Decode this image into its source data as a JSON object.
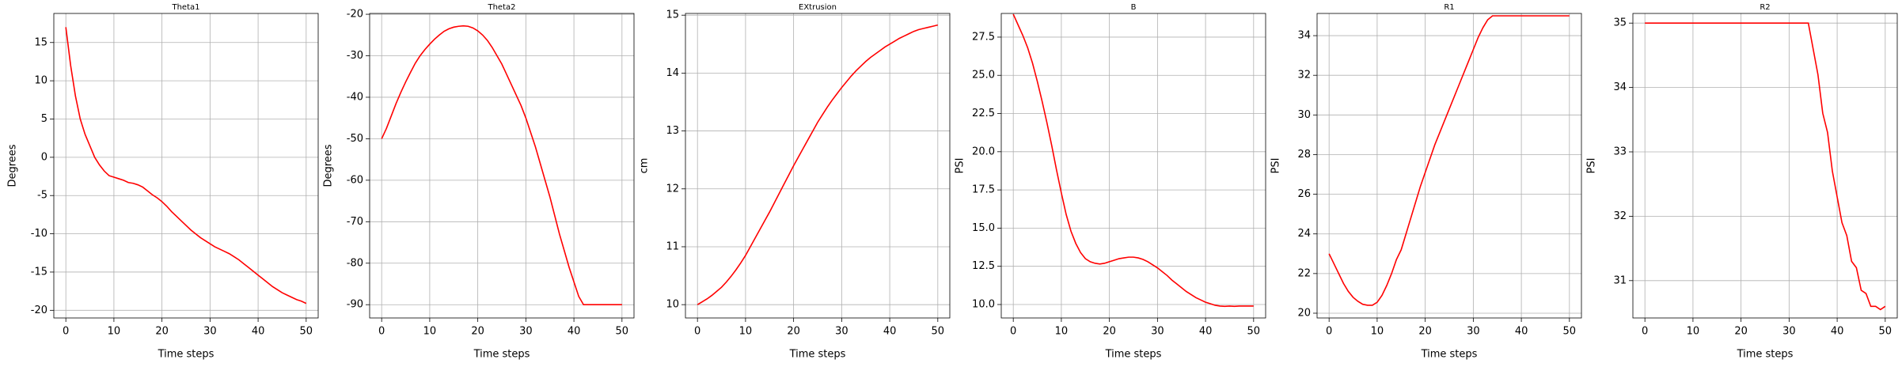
{
  "chart_data": [
    {
      "type": "line",
      "title": "Theta1",
      "xlabel": "Time steps",
      "ylabel": "Degrees",
      "color": "#ff0000",
      "grid": true,
      "x": [
        0,
        1,
        2,
        3,
        4,
        5,
        6,
        7,
        8,
        9,
        10,
        11,
        12,
        13,
        14,
        15,
        16,
        17,
        18,
        19,
        20,
        21,
        22,
        23,
        24,
        25,
        26,
        27,
        28,
        29,
        30,
        31,
        32,
        33,
        34,
        35,
        36,
        37,
        38,
        39,
        40,
        41,
        42,
        43,
        44,
        45,
        46,
        47,
        48,
        49,
        50
      ],
      "values": [
        17,
        12,
        8,
        5,
        3,
        1.5,
        0,
        -1,
        -1.8,
        -2.4,
        -2.6,
        -2.8,
        -3,
        -3.3,
        -3.4,
        -3.6,
        -3.9,
        -4.4,
        -4.9,
        -5.3,
        -5.8,
        -6.4,
        -7.1,
        -7.7,
        -8.3,
        -8.9,
        -9.5,
        -10,
        -10.5,
        -10.9,
        -11.3,
        -11.7,
        -12,
        -12.3,
        -12.6,
        -13,
        -13.4,
        -13.9,
        -14.4,
        -14.9,
        -15.4,
        -15.9,
        -16.4,
        -16.9,
        -17.3,
        -17.7,
        -18,
        -18.3,
        -18.6,
        -18.8,
        -19.1
      ],
      "xlim": [
        -2.5,
        52.5
      ],
      "ylim": [
        -21,
        18.8
      ],
      "xticks": [
        0,
        10,
        20,
        30,
        40,
        50
      ],
      "yticks": [
        -20,
        -15,
        -10,
        -5,
        0,
        5,
        10,
        15
      ]
    },
    {
      "type": "line",
      "title": "Theta2",
      "xlabel": "Time steps",
      "ylabel": "Degrees",
      "color": "#ff0000",
      "grid": true,
      "x": [
        0,
        1,
        2,
        3,
        4,
        5,
        6,
        7,
        8,
        9,
        10,
        11,
        12,
        13,
        14,
        15,
        16,
        17,
        18,
        19,
        20,
        21,
        22,
        23,
        24,
        25,
        26,
        27,
        28,
        29,
        30,
        31,
        32,
        33,
        34,
        35,
        36,
        37,
        38,
        39,
        40,
        41,
        42,
        43,
        44,
        45,
        46,
        47,
        48,
        49,
        50
      ],
      "values": [
        -50,
        -47.5,
        -44.5,
        -41.5,
        -38.8,
        -36.3,
        -34,
        -31.8,
        -30,
        -28.5,
        -27.2,
        -26,
        -25,
        -24.1,
        -23.5,
        -23.1,
        -22.9,
        -22.8,
        -22.9,
        -23.3,
        -24,
        -25,
        -26.3,
        -28,
        -30,
        -32,
        -34.5,
        -37,
        -39.5,
        -42,
        -45,
        -48.5,
        -52,
        -56,
        -60,
        -64,
        -68.5,
        -73,
        -77,
        -81,
        -84.5,
        -88,
        -90,
        -90,
        -90,
        -90,
        -90,
        -90,
        -90,
        -90,
        -90
      ],
      "xlim": [
        -2.5,
        52.5
      ],
      "ylim": [
        -93.2,
        -19.8
      ],
      "xticks": [
        0,
        10,
        20,
        30,
        40,
        50
      ],
      "yticks": [
        -90,
        -80,
        -70,
        -60,
        -50,
        -40,
        -30,
        -20
      ]
    },
    {
      "type": "line",
      "title": "EXtrusion",
      "xlabel": "Time steps",
      "ylabel": "cm",
      "color": "#ff0000",
      "grid": true,
      "x": [
        0,
        1,
        2,
        3,
        4,
        5,
        6,
        7,
        8,
        9,
        10,
        11,
        12,
        13,
        14,
        15,
        16,
        17,
        18,
        19,
        20,
        21,
        22,
        23,
        24,
        25,
        26,
        27,
        28,
        29,
        30,
        31,
        32,
        33,
        34,
        35,
        36,
        37,
        38,
        39,
        40,
        41,
        42,
        43,
        44,
        45,
        46,
        47,
        48,
        49,
        50
      ],
      "values": [
        10,
        10.05,
        10.1,
        10.16,
        10.23,
        10.3,
        10.39,
        10.49,
        10.6,
        10.72,
        10.85,
        11,
        11.15,
        11.3,
        11.45,
        11.6,
        11.76,
        11.92,
        12.08,
        12.24,
        12.4,
        12.55,
        12.7,
        12.85,
        13,
        13.15,
        13.28,
        13.41,
        13.53,
        13.64,
        13.75,
        13.85,
        13.95,
        14.04,
        14.12,
        14.2,
        14.27,
        14.33,
        14.39,
        14.45,
        14.5,
        14.55,
        14.6,
        14.64,
        14.68,
        14.72,
        14.75,
        14.77,
        14.79,
        14.81,
        14.83
      ],
      "xlim": [
        -2.5,
        52.5
      ],
      "ylim": [
        9.77,
        15.03
      ],
      "xticks": [
        0,
        10,
        20,
        30,
        40,
        50
      ],
      "yticks": [
        10,
        11,
        12,
        13,
        14,
        15
      ]
    },
    {
      "type": "line",
      "title": "B",
      "xlabel": "Time steps",
      "ylabel": "PSI",
      "color": "#ff0000",
      "grid": true,
      "x": [
        0,
        1,
        2,
        3,
        4,
        5,
        6,
        7,
        8,
        9,
        10,
        11,
        12,
        13,
        14,
        15,
        16,
        17,
        18,
        19,
        20,
        21,
        22,
        23,
        24,
        25,
        26,
        27,
        28,
        29,
        30,
        31,
        32,
        33,
        34,
        35,
        36,
        37,
        38,
        39,
        40,
        41,
        42,
        43,
        44,
        45,
        46,
        47,
        48,
        49,
        50
      ],
      "values": [
        29,
        28.3,
        27.6,
        26.8,
        25.8,
        24.6,
        23.3,
        21.9,
        20.4,
        18.8,
        17.3,
        15.9,
        14.8,
        14,
        13.4,
        13,
        12.8,
        12.7,
        12.65,
        12.7,
        12.8,
        12.9,
        13,
        13.05,
        13.1,
        13.1,
        13.05,
        12.95,
        12.8,
        12.6,
        12.4,
        12.15,
        11.9,
        11.6,
        11.35,
        11.1,
        10.85,
        10.65,
        10.45,
        10.3,
        10.15,
        10.05,
        9.95,
        9.9,
        9.88,
        9.9,
        9.88,
        9.9,
        9.9,
        9.9,
        9.9
      ],
      "xlim": [
        -2.5,
        52.5
      ],
      "ylim": [
        9.12,
        29.05
      ],
      "xticks": [
        0,
        10,
        20,
        30,
        40,
        50
      ],
      "yticks": [
        {
          "value": 10,
          "label": "10.0"
        },
        12.5,
        {
          "value": 15,
          "label": "15.0"
        },
        17.5,
        {
          "value": 20,
          "label": "20.0"
        },
        22.5,
        {
          "value": 25,
          "label": "25.0"
        },
        27.5
      ]
    },
    {
      "type": "line",
      "title": "R1",
      "xlabel": "Time steps",
      "ylabel": "PSI",
      "color": "#ff0000",
      "grid": true,
      "x": [
        0,
        1,
        2,
        3,
        4,
        5,
        6,
        7,
        8,
        9,
        10,
        11,
        12,
        13,
        14,
        15,
        16,
        17,
        18,
        19,
        20,
        21,
        22,
        23,
        24,
        25,
        26,
        27,
        28,
        29,
        30,
        31,
        32,
        33,
        34,
        35,
        36,
        37,
        38,
        39,
        40,
        41,
        42,
        43,
        44,
        45,
        46,
        47,
        48,
        49,
        50
      ],
      "values": [
        23,
        22.5,
        22,
        21.5,
        21.1,
        20.8,
        20.6,
        20.45,
        20.4,
        20.4,
        20.55,
        20.9,
        21.4,
        22,
        22.7,
        23.2,
        24,
        24.8,
        25.6,
        26.4,
        27.1,
        27.8,
        28.5,
        29.1,
        29.7,
        30.3,
        30.9,
        31.5,
        32.1,
        32.7,
        33.3,
        33.9,
        34.4,
        34.8,
        35,
        35,
        35,
        35,
        35,
        35,
        35,
        35,
        35,
        35,
        35,
        35,
        35,
        35,
        35,
        35,
        35
      ],
      "xlim": [
        -2.5,
        52.5
      ],
      "ylim": [
        19.76,
        35.12
      ],
      "xticks": [
        0,
        10,
        20,
        30,
        40,
        50
      ],
      "yticks": [
        20,
        22,
        24,
        26,
        28,
        30,
        32,
        34
      ]
    },
    {
      "type": "line",
      "title": "R2",
      "xlabel": "Time steps",
      "ylabel": "PSI",
      "color": "#ff0000",
      "grid": true,
      "x": [
        0,
        1,
        2,
        3,
        4,
        5,
        6,
        7,
        8,
        9,
        10,
        11,
        12,
        13,
        14,
        15,
        16,
        17,
        18,
        19,
        20,
        21,
        22,
        23,
        24,
        25,
        26,
        27,
        28,
        29,
        30,
        31,
        32,
        33,
        34,
        35,
        36,
        37,
        38,
        39,
        40,
        41,
        42,
        43,
        44,
        45,
        46,
        47,
        48,
        49,
        50
      ],
      "values": [
        35,
        35,
        35,
        35,
        35,
        35,
        35,
        35,
        35,
        35,
        35,
        35,
        35,
        35,
        35,
        35,
        35,
        35,
        35,
        35,
        35,
        35,
        35,
        35,
        35,
        35,
        35,
        35,
        35,
        35,
        35,
        35,
        35,
        35,
        35,
        34.6,
        34.2,
        33.6,
        33.3,
        32.7,
        32.3,
        31.9,
        31.7,
        31.3,
        31.2,
        30.85,
        30.8,
        30.6,
        30.6,
        30.55,
        30.6
      ],
      "xlim": [
        -2.5,
        52.5
      ],
      "ylim": [
        30.42,
        35.15
      ],
      "xticks": [
        0,
        10,
        20,
        30,
        40,
        50
      ],
      "yticks": [
        31,
        32,
        33,
        34,
        35
      ]
    }
  ]
}
